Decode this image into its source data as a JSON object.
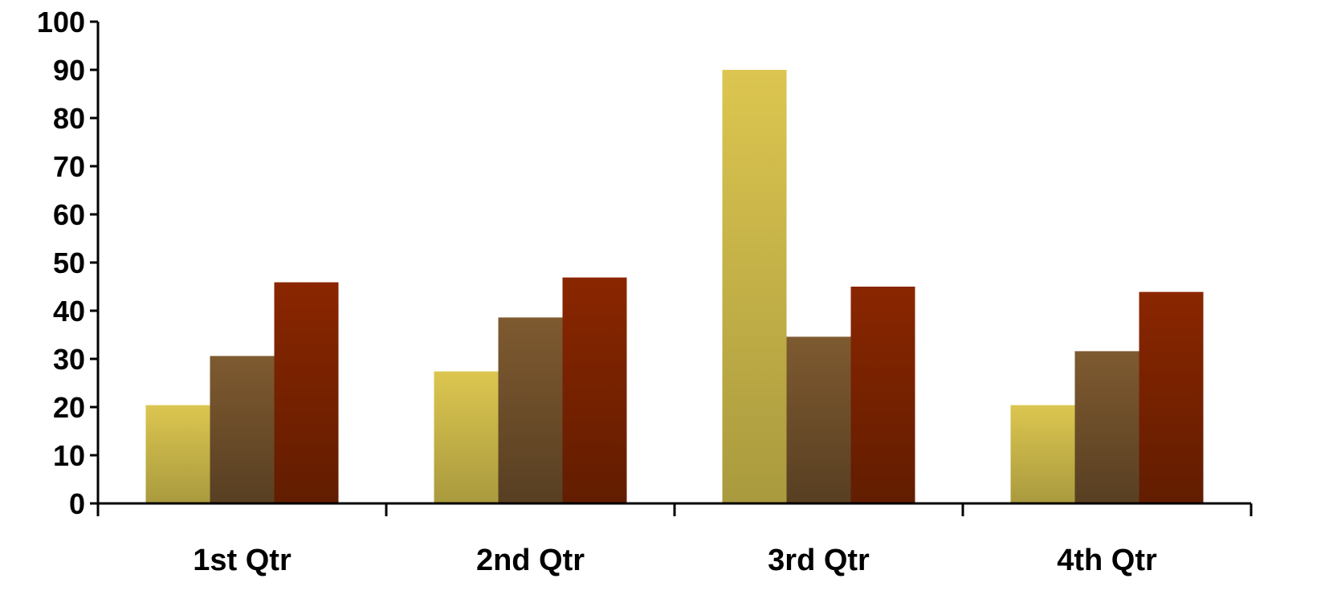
{
  "chart_data": {
    "type": "bar",
    "categories": [
      "1st Qtr",
      "2nd Qtr",
      "3rd Qtr",
      "4th Qtr"
    ],
    "series": [
      {
        "values": [
          20.4,
          27.4,
          90,
          20.4
        ],
        "color_top": "#dcc650",
        "color_bottom": "#a99a3e"
      },
      {
        "values": [
          30.6,
          38.6,
          34.6,
          31.6
        ],
        "color_top": "#7e5a30",
        "color_bottom": "#583f22"
      },
      {
        "values": [
          45.9,
          46.9,
          45.0,
          43.9
        ],
        "color_top": "#8a2600",
        "color_bottom": "#621d00"
      }
    ],
    "yticks": [
      0,
      10,
      20,
      30,
      40,
      50,
      60,
      70,
      80,
      90,
      100
    ],
    "ylim": [
      0,
      100
    ],
    "grid": false,
    "legend": "none"
  }
}
